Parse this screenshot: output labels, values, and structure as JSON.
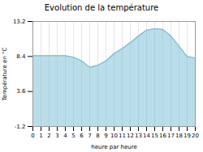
{
  "chart_data": {
    "type": "area",
    "title": "Evolution de la température",
    "x_label": "heure par heure",
    "y_label": "Température en °C",
    "x": [
      0,
      1,
      2,
      3,
      4,
      5,
      6,
      7,
      8,
      9,
      10,
      11,
      12,
      13,
      14,
      15,
      16,
      17,
      18,
      19,
      20
    ],
    "values": [
      8.5,
      8.5,
      8.5,
      8.5,
      8.5,
      8.3,
      7.8,
      6.9,
      7.2,
      7.8,
      8.8,
      9.5,
      10.3,
      11.2,
      12.0,
      12.2,
      12.1,
      11.2,
      9.8,
      8.4,
      8.2
    ],
    "color": "#74bdd4",
    "xlim": [
      0,
      20
    ],
    "xticks": [
      0,
      1,
      2,
      3,
      4,
      5,
      6,
      7,
      8,
      9,
      10,
      11,
      12,
      13,
      14,
      15,
      16,
      17,
      18,
      19,
      20
    ],
    "ylim": [
      -1.2,
      13.2
    ],
    "yticks": [
      -1.2,
      3.6,
      8.4,
      13.2
    ],
    "grid": "x"
  }
}
